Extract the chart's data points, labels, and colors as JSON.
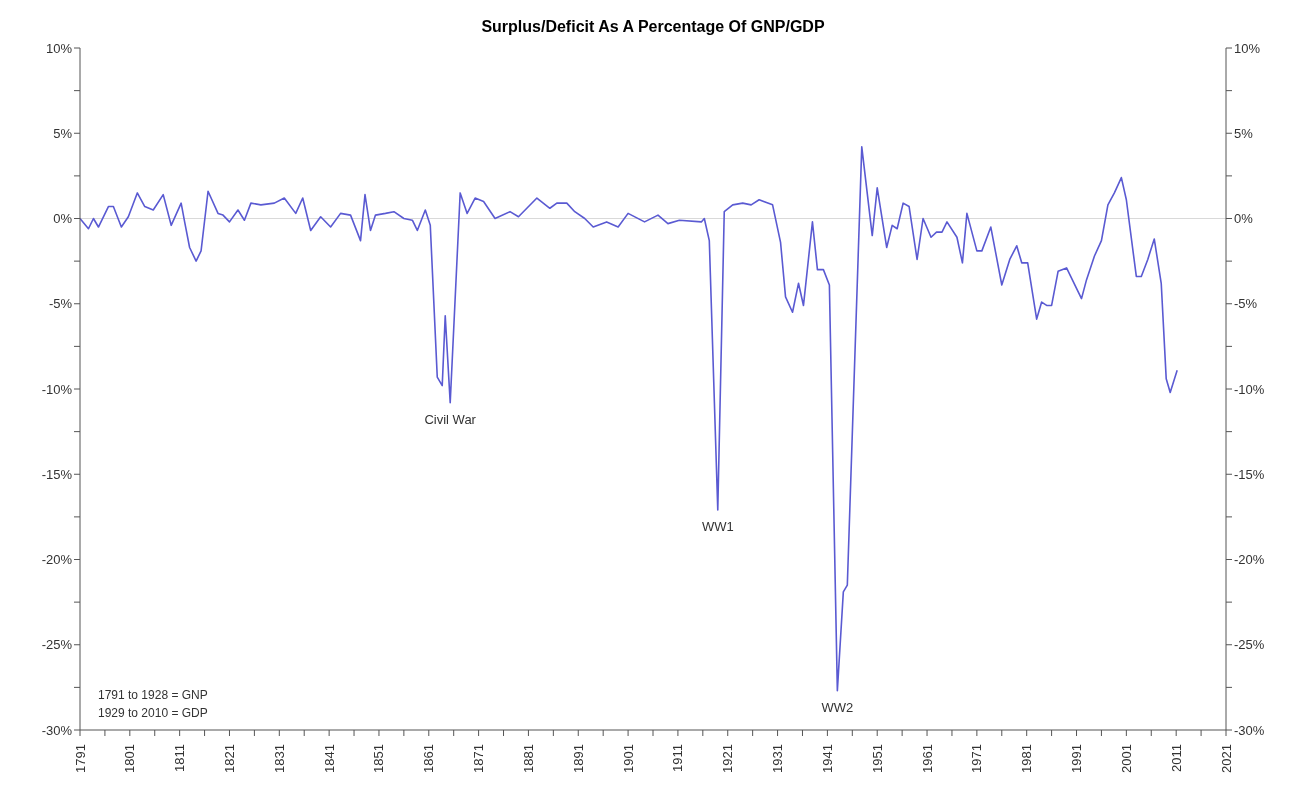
{
  "chart_data": {
    "type": "line",
    "title": "Surplus/Deficit As A Percentage Of GNP/GDP",
    "series": [
      {
        "color": "#5a5ad2",
        "x": [
          1791,
          1792.7,
          1793.7,
          1794.7,
          1796.7,
          1797.7,
          1799.3,
          1800.7,
          1802.5,
          1804,
          1805.7,
          1807.7,
          1809.3,
          1811.3,
          1812,
          1813,
          1814.3,
          1815.3,
          1816.7,
          1818.7,
          1819.7,
          1821,
          1822.7,
          1824,
          1825.3,
          1827.3,
          1830,
          1832,
          1834.3,
          1835.7,
          1837.3,
          1839.3,
          1841.3,
          1843.3,
          1845.3,
          1847.3,
          1848.2,
          1849.3,
          1850.3,
          1852.3,
          1854,
          1856,
          1857.7,
          1858.7,
          1860.3,
          1861.3,
          1862.7,
          1863.7,
          1864.3,
          1865.3,
          1867.3,
          1868.7,
          1870.3,
          1872,
          1874.3,
          1877.3,
          1879,
          1882.7,
          1885.3,
          1886.7,
          1888.7,
          1890.3,
          1892.3,
          1894,
          1896.7,
          1899,
          1901,
          1904.3,
          1907,
          1909,
          1911.3,
          1915.7,
          1916.3,
          1917.3,
          1919,
          1920.3,
          1922,
          1924,
          1925.7,
          1927.3,
          1930,
          1931.6,
          1932.6,
          1934,
          1935.2,
          1936.2,
          1938,
          1939,
          1940.2,
          1941.4,
          1943,
          1944.2,
          1945,
          1947.9,
          1950,
          1951,
          1952.9,
          1954,
          1955,
          1956.2,
          1957.4,
          1959,
          1960.2,
          1961.8,
          1962.9,
          1964,
          1965,
          1967,
          1968.1,
          1969,
          1971,
          1972,
          1973.8,
          1976,
          1977.6,
          1979,
          1980,
          1981.2,
          1983,
          1984,
          1985,
          1986,
          1987.3,
          1989,
          1992,
          1993,
          1994.6,
          1996,
          1997.3,
          1998.6,
          2000,
          2001,
          2003,
          2004,
          2005.3,
          2006.6,
          2008,
          2009,
          2009.8,
          2011.2
        ],
        "values": [
          0,
          -0.6,
          0,
          -0.5,
          0.7,
          0.7,
          -0.5,
          0.1,
          1.5,
          0.7,
          0.5,
          1.4,
          -0.4,
          0.9,
          -0.2,
          -1.7,
          -2.5,
          -1.9,
          1.6,
          0.3,
          0.2,
          -0.2,
          0.5,
          -0.1,
          0.9,
          0.8,
          0.9,
          1.2,
          0.3,
          1.2,
          -0.7,
          0.1,
          -0.5,
          0.3,
          0.2,
          -1.3,
          1.4,
          -0.7,
          0.2,
          0.3,
          0.4,
          0,
          -0.1,
          -0.7,
          0.5,
          -0.4,
          -9.3,
          -9.8,
          -5.7,
          -10.8,
          1.5,
          0.3,
          1.2,
          1.0,
          0,
          0.4,
          0.1,
          1.2,
          0.6,
          0.9,
          0.9,
          0.4,
          0,
          -0.5,
          -0.2,
          -0.5,
          0.3,
          -0.2,
          0.2,
          -0.3,
          -0.1,
          -0.2,
          0,
          -1.3,
          -17.1,
          0.4,
          0.8,
          0.9,
          0.8,
          1.1,
          0.8,
          -1.4,
          -4.6,
          -5.5,
          -3.8,
          -5.1,
          -0.2,
          -3.0,
          -3.0,
          -3.9,
          -27.7,
          -21.9,
          -21.5,
          4.2,
          -1.0,
          1.8,
          -1.7,
          -0.4,
          -0.6,
          0.9,
          0.7,
          -2.4,
          0,
          -1.1,
          -0.8,
          -0.8,
          -0.2,
          -1.1,
          -2.6,
          0.3,
          -1.9,
          -1.9,
          -0.5,
          -3.9,
          -2.4,
          -1.6,
          -2.6,
          -2.6,
          -5.9,
          -4.9,
          -5.1,
          -5.1,
          -3.1,
          -2.9,
          -4.7,
          -3.6,
          -2.2,
          -1.3,
          0.8,
          1.5,
          2.4,
          1.1,
          -3.4,
          -3.4,
          -2.4,
          -1.2,
          -3.8,
          -9.4,
          -10.2,
          -8.9
        ]
      }
    ],
    "xlim": [
      1791,
      2021
    ],
    "xticks": [
      1791,
      {
        "value": 1796,
        "label": null
      },
      1801,
      {
        "value": 1806,
        "label": null
      },
      1811,
      {
        "value": 1816,
        "label": null
      },
      1821,
      {
        "value": 1826,
        "label": null
      },
      1831,
      {
        "value": 1836,
        "label": null
      },
      1841,
      {
        "value": 1846,
        "label": null
      },
      1851,
      {
        "value": 1856,
        "label": null
      },
      1861,
      {
        "value": 1866,
        "label": null
      },
      1871,
      {
        "value": 1876,
        "label": null
      },
      1881,
      {
        "value": 1886,
        "label": null
      },
      1891,
      {
        "value": 1896,
        "label": null
      },
      1901,
      {
        "value": 1906,
        "label": null
      },
      1911,
      {
        "value": 1916,
        "label": null
      },
      1921,
      {
        "value": 1926,
        "label": null
      },
      1931,
      {
        "value": 1936,
        "label": null
      },
      1941,
      {
        "value": 1946,
        "label": null
      },
      1951,
      {
        "value": 1956,
        "label": null
      },
      1961,
      {
        "value": 1966,
        "label": null
      },
      1971,
      {
        "value": 1976,
        "label": null
      },
      1981,
      {
        "value": 1986,
        "label": null
      },
      1991,
      {
        "value": 1996,
        "label": null
      },
      2001,
      {
        "value": 2006,
        "label": null
      },
      2011,
      {
        "value": 2016,
        "label": null
      },
      2021
    ],
    "ylim": [
      -30,
      10
    ],
    "yticks": [
      {
        "value": -30,
        "label": "-30%"
      },
      {
        "value": -27.5,
        "label": null
      },
      {
        "value": -25,
        "label": "-25%"
      },
      {
        "value": -22.5,
        "label": null
      },
      {
        "value": -20,
        "label": "-20%"
      },
      {
        "value": -17.5,
        "label": null
      },
      {
        "value": -15,
        "label": "-15%"
      },
      {
        "value": -12.5,
        "label": null
      },
      {
        "value": -10,
        "label": "-10%"
      },
      {
        "value": -7.5,
        "label": null
      },
      {
        "value": -5,
        "label": "-5%"
      },
      {
        "value": -2.5,
        "label": null
      },
      {
        "value": 0,
        "label": "0%"
      },
      {
        "value": 2.5,
        "label": null
      },
      {
        "value": 5,
        "label": "5%"
      },
      {
        "value": 7.5,
        "label": null
      },
      {
        "value": 10,
        "label": "10%"
      }
    ],
    "y2lim": [
      -30,
      10
    ],
    "y2ticks": [
      {
        "value": -30,
        "label": "-30%"
      },
      {
        "value": -27.5,
        "label": null
      },
      {
        "value": -25,
        "label": "-25%"
      },
      {
        "value": -22.5,
        "label": null
      },
      {
        "value": -20,
        "label": "-20%"
      },
      {
        "value": -17.5,
        "label": null
      },
      {
        "value": -15,
        "label": "-15%"
      },
      {
        "value": -12.5,
        "label": null
      },
      {
        "value": -10,
        "label": "-10%"
      },
      {
        "value": -7.5,
        "label": null
      },
      {
        "value": -5,
        "label": "-5%"
      },
      {
        "value": -2.5,
        "label": null
      },
      {
        "value": 0,
        "label": "0%"
      },
      {
        "value": 2.5,
        "label": null
      },
      {
        "value": 5,
        "label": "5%"
      },
      {
        "value": 7.5,
        "label": null
      },
      {
        "value": 10,
        "label": "10%"
      }
    ],
    "ref_lines": [
      {
        "axis": "y",
        "value": 0,
        "label": null,
        "color": "#d9d9d9"
      }
    ],
    "annotations": [
      {
        "text": "Civil War",
        "x": 1865.3,
        "y": -10.8
      },
      {
        "text": "WW1",
        "x": 1919,
        "y": -17.1
      },
      {
        "text": "WW2",
        "x": 1943,
        "y": -27.7
      },
      "1791 to 1928 = GNP",
      "1929 to 2010 = GDP"
    ]
  }
}
